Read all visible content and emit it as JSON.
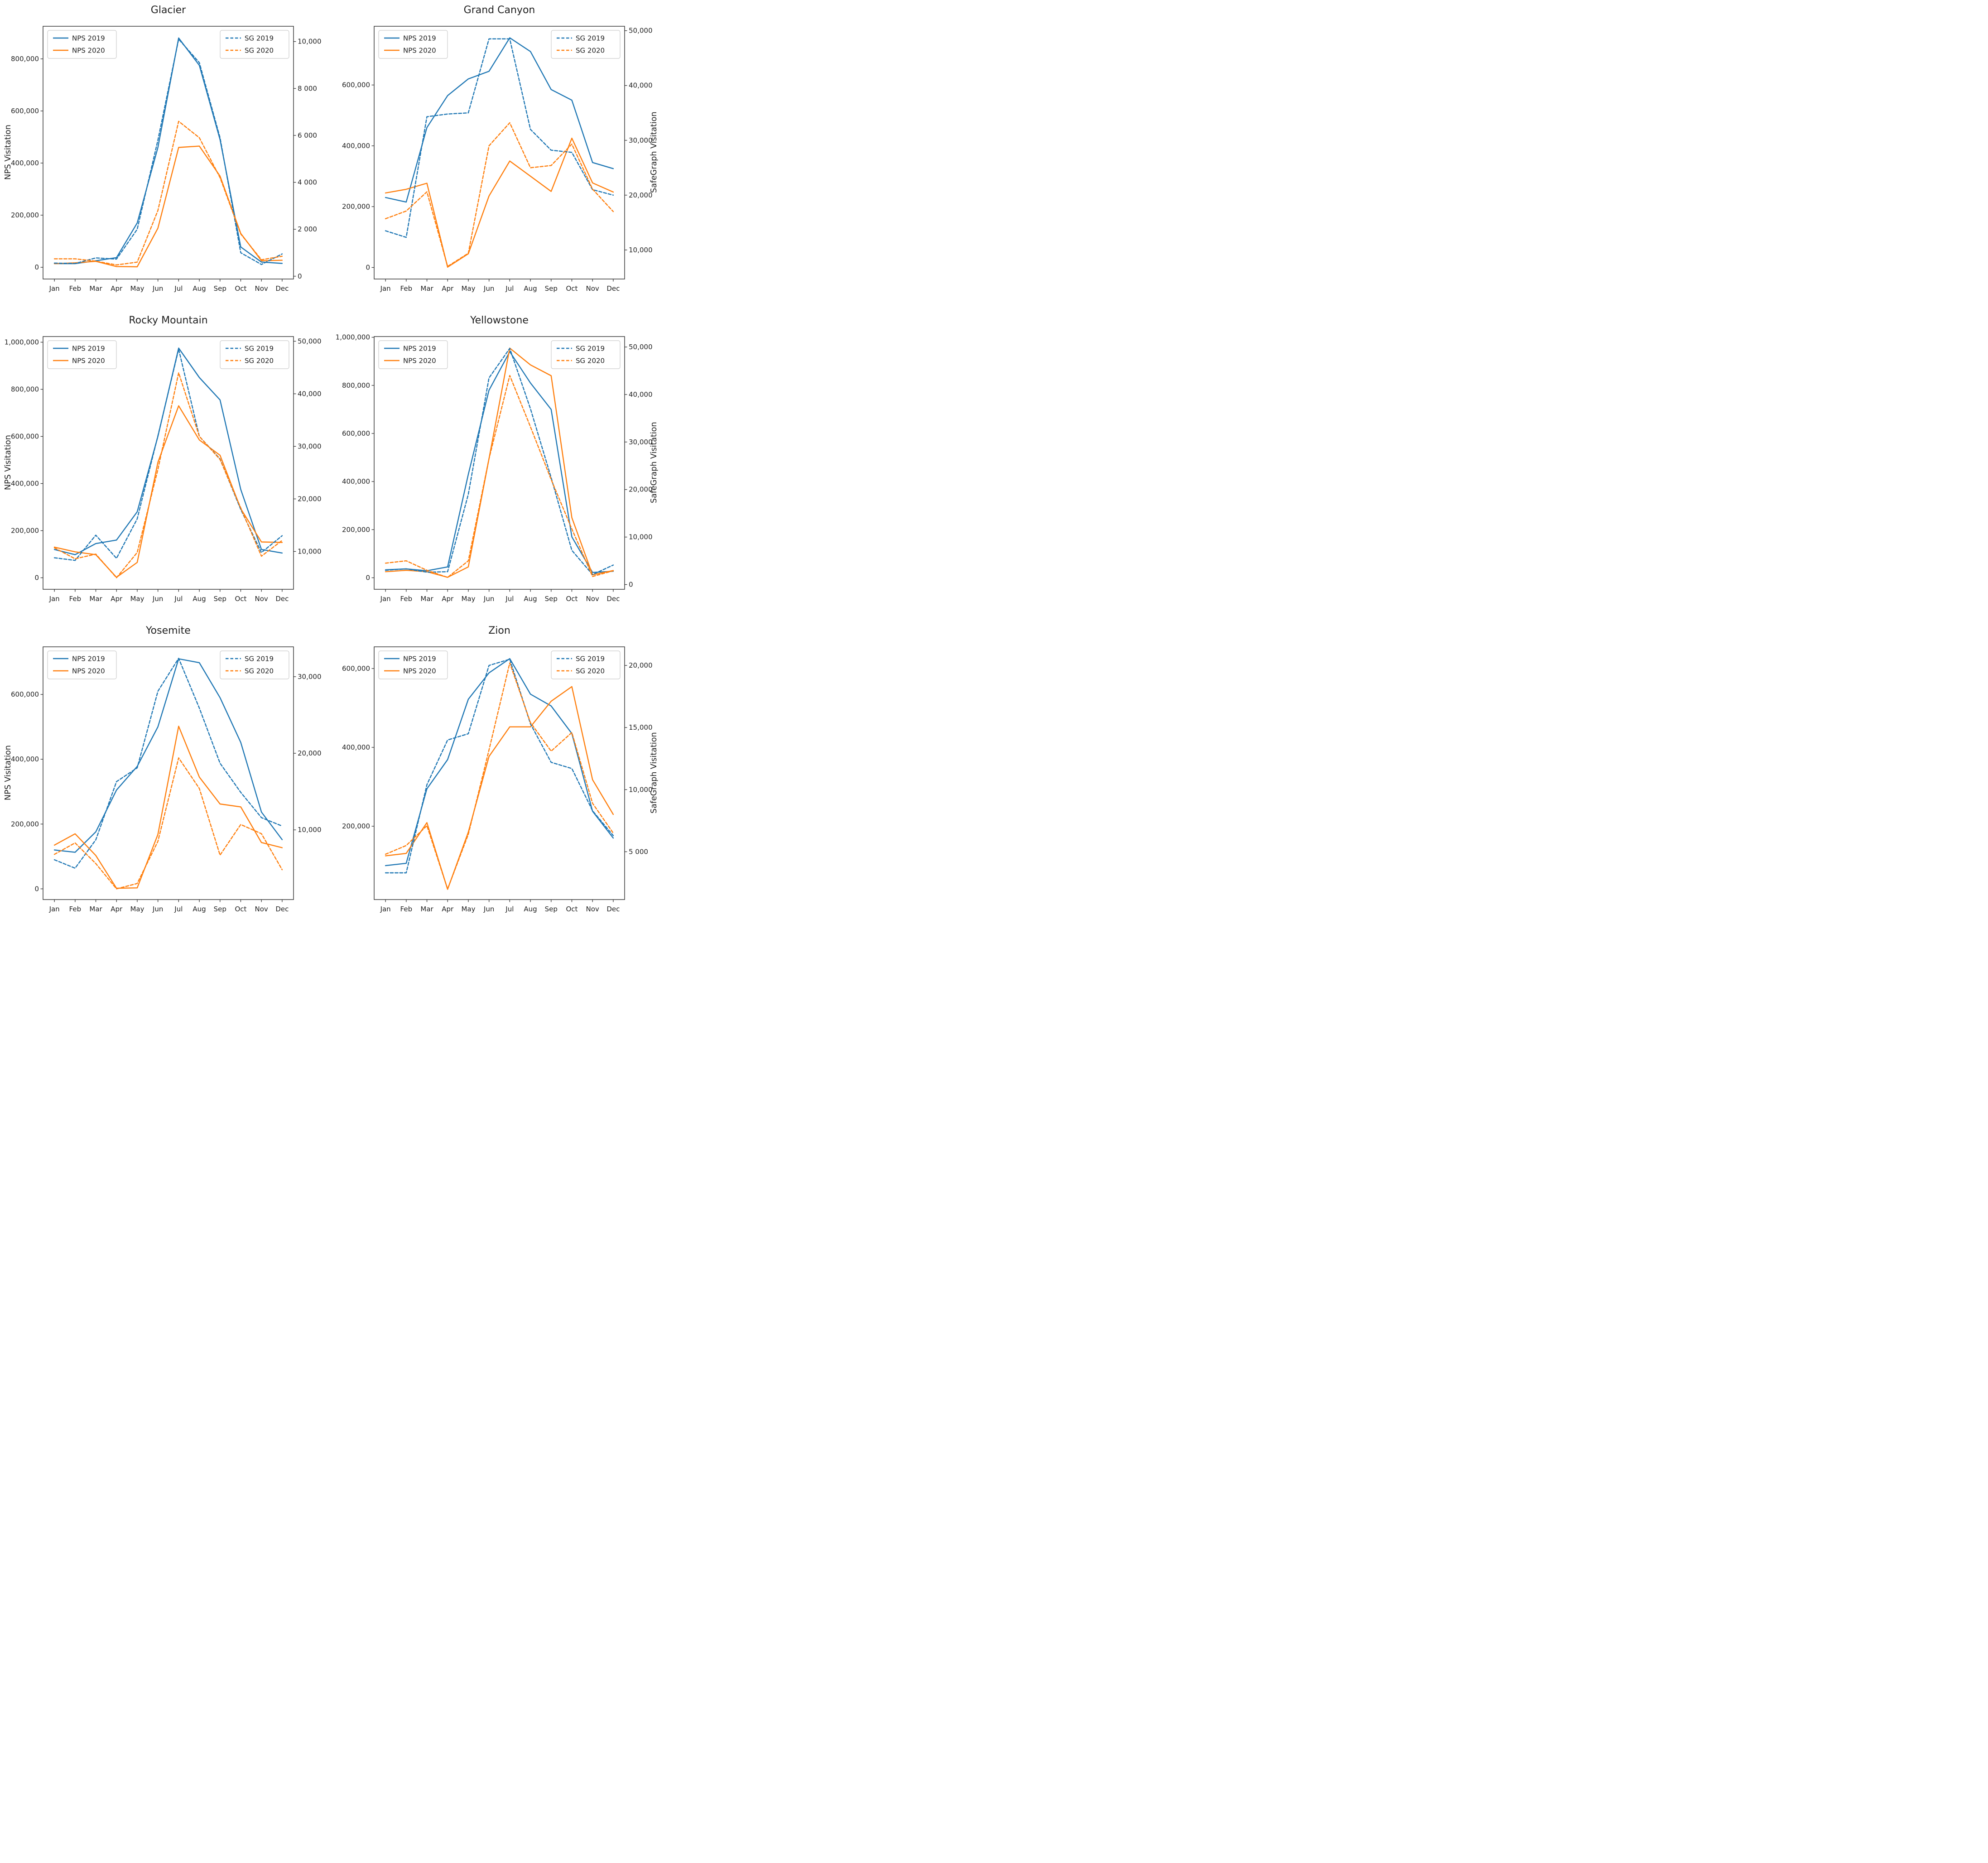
{
  "figure": {
    "colors": {
      "nps_blue": "#1f77b4",
      "nps_orange": "#ff7f0e",
      "text": "#1f1f1f",
      "spine": "#2e2e2e",
      "legend_border": "#cccccc",
      "legend_fill": "#ffffff"
    }
  },
  "chart_data": [
    {
      "type": "line",
      "title": "Glacier",
      "ylabel_left": "NPS Visitation",
      "categories": [
        "Jan",
        "Feb",
        "Mar",
        "Apr",
        "May",
        "Jun",
        "Jul",
        "Aug",
        "Sep",
        "Oct",
        "Nov",
        "Dec"
      ],
      "left_axis": {
        "lim": [
          -45000,
          925000
        ],
        "ticks": [
          {
            "v": 0,
            "label": "0"
          },
          {
            "v": 200000,
            "label": "200,000"
          },
          {
            "v": 400000,
            "label": "400,000"
          },
          {
            "v": 600000,
            "label": "600,000"
          },
          {
            "v": 800000,
            "label": "800,000"
          }
        ]
      },
      "right_axis": {
        "lim": [
          -120,
          10650
        ],
        "ticks": [
          {
            "v": 0,
            "label": "0"
          },
          {
            "v": 2000,
            "label": "2 000"
          },
          {
            "v": 4000,
            "label": "4 000"
          },
          {
            "v": 6000,
            "label": "6 000"
          },
          {
            "v": 8000,
            "label": "8 000"
          },
          {
            "v": 10000,
            "label": "10,000"
          }
        ]
      },
      "series": [
        {
          "name": "NPS 2019",
          "axis": "left",
          "style": "solid",
          "color": "#1f77b4",
          "values": [
            14000,
            14000,
            25000,
            37000,
            170000,
            460000,
            880000,
            775000,
            490000,
            78000,
            20000,
            15000
          ]
        },
        {
          "name": "NPS 2020",
          "axis": "left",
          "style": "solid",
          "color": "#ff7f0e",
          "values": [
            14000,
            17000,
            23000,
            3000,
            2000,
            150000,
            460000,
            465000,
            350000,
            130000,
            25000,
            27000
          ]
        },
        {
          "name": "SG 2019",
          "axis": "right",
          "style": "dashed",
          "color": "#1f77b4",
          "values": [
            560,
            540,
            780,
            730,
            2000,
            5800,
            10100,
            9100,
            5900,
            1000,
            500,
            950
          ]
        },
        {
          "name": "SG 2020",
          "axis": "right",
          "style": "dashed",
          "color": "#ff7f0e",
          "values": [
            740,
            740,
            640,
            480,
            600,
            2800,
            6600,
            5900,
            4200,
            1800,
            700,
            850
          ]
        }
      ]
    },
    {
      "type": "line",
      "title": "Grand Canyon",
      "ylabel_right": "SafeGraph Visitation",
      "categories": [
        "Jan",
        "Feb",
        "Mar",
        "Apr",
        "May",
        "Jun",
        "Jul",
        "Aug",
        "Sep",
        "Oct",
        "Nov",
        "Dec"
      ],
      "left_axis": {
        "lim": [
          -38000,
          793000
        ],
        "ticks": [
          {
            "v": 0,
            "label": "0"
          },
          {
            "v": 200000,
            "label": "200,000"
          },
          {
            "v": 400000,
            "label": "400,000"
          },
          {
            "v": 600000,
            "label": "600,000"
          }
        ]
      },
      "right_axis": {
        "lim": [
          4700,
          50800
        ],
        "ticks": [
          {
            "v": 10000,
            "label": "10,000"
          },
          {
            "v": 20000,
            "label": "20,000"
          },
          {
            "v": 30000,
            "label": "30,000"
          },
          {
            "v": 40000,
            "label": "40,000"
          },
          {
            "v": 50000,
            "label": "50,000"
          }
        ]
      },
      "series": [
        {
          "name": "NPS 2019",
          "axis": "left",
          "style": "solid",
          "color": "#1f77b4",
          "values": [
            230000,
            215000,
            460000,
            565000,
            620000,
            645000,
            755000,
            710000,
            585000,
            550000,
            345000,
            325000
          ]
        },
        {
          "name": "NPS 2020",
          "axis": "left",
          "style": "solid",
          "color": "#ff7f0e",
          "values": [
            245000,
            257000,
            277000,
            1000,
            45000,
            235000,
            350000,
            300000,
            250000,
            425000,
            278000,
            248000
          ]
        },
        {
          "name": "SG 2019",
          "axis": "right",
          "style": "dashed",
          "color": "#1f77b4",
          "values": [
            13500,
            12300,
            34300,
            34800,
            35000,
            48500,
            48500,
            32000,
            28200,
            27800,
            21000,
            20000
          ]
        },
        {
          "name": "SG 2020",
          "axis": "right",
          "style": "dashed",
          "color": "#ff7f0e",
          "values": [
            15700,
            17100,
            20600,
            7000,
            9400,
            29000,
            33200,
            25000,
            25400,
            29300,
            21100,
            17000
          ]
        }
      ]
    },
    {
      "type": "line",
      "title": "Rocky Mountain",
      "ylabel_left": "NPS Visitation",
      "categories": [
        "Jan",
        "Feb",
        "Mar",
        "Apr",
        "May",
        "Jun",
        "Jul",
        "Aug",
        "Sep",
        "Oct",
        "Nov",
        "Dec"
      ],
      "left_axis": {
        "lim": [
          -49000,
          1024000
        ],
        "ticks": [
          {
            "v": 0,
            "label": "0"
          },
          {
            "v": 200000,
            "label": "200,000"
          },
          {
            "v": 400000,
            "label": "400,000"
          },
          {
            "v": 600000,
            "label": "600,000"
          },
          {
            "v": 800000,
            "label": "800,000"
          },
          {
            "v": 1000000,
            "label": "1,000,000"
          }
        ]
      },
      "right_axis": {
        "lim": [
          2800,
          50900
        ],
        "ticks": [
          {
            "v": 10000,
            "label": "10,000"
          },
          {
            "v": 20000,
            "label": "20,000"
          },
          {
            "v": 30000,
            "label": "30,000"
          },
          {
            "v": 40000,
            "label": "40,000"
          },
          {
            "v": 50000,
            "label": "50,000"
          }
        ]
      },
      "series": [
        {
          "name": "NPS 2019",
          "axis": "left",
          "style": "solid",
          "color": "#1f77b4",
          "values": [
            120000,
            98000,
            145000,
            160000,
            280000,
            600000,
            975000,
            850000,
            755000,
            375000,
            120000,
            105000
          ]
        },
        {
          "name": "NPS 2020",
          "axis": "left",
          "style": "solid",
          "color": "#ff7f0e",
          "values": [
            130000,
            110000,
            98000,
            2000,
            65000,
            490000,
            730000,
            585000,
            520000,
            293000,
            152000,
            150000
          ]
        },
        {
          "name": "SG 2019",
          "axis": "right",
          "style": "dashed",
          "color": "#1f77b4",
          "values": [
            8800,
            8300,
            13100,
            8700,
            16200,
            32000,
            48500,
            31900,
            27600,
            18000,
            9800,
            13000
          ]
        },
        {
          "name": "SG 2020",
          "axis": "right",
          "style": "dashed",
          "color": "#ff7f0e",
          "values": [
            10700,
            8600,
            9500,
            5000,
            9800,
            25600,
            44000,
            31900,
            27500,
            18300,
            9100,
            12100
          ]
        }
      ]
    },
    {
      "type": "line",
      "title": "Yellowstone",
      "ylabel_right": "SafeGraph Visitation",
      "categories": [
        "Jan",
        "Feb",
        "Mar",
        "Apr",
        "May",
        "Jun",
        "Jul",
        "Aug",
        "Sep",
        "Oct",
        "Nov",
        "Dec"
      ],
      "left_axis": {
        "lim": [
          -48000,
          1003000
        ],
        "ticks": [
          {
            "v": 0,
            "label": "0"
          },
          {
            "v": 200000,
            "label": "200,000"
          },
          {
            "v": 400000,
            "label": "400,000"
          },
          {
            "v": 600000,
            "label": "600,000"
          },
          {
            "v": 800000,
            "label": "800,000"
          },
          {
            "v": 1000000,
            "label": "1,000,000"
          }
        ]
      },
      "right_axis": {
        "lim": [
          -1000,
          52200
        ],
        "ticks": [
          {
            "v": 0,
            "label": "0"
          },
          {
            "v": 10000,
            "label": "10,000"
          },
          {
            "v": 20000,
            "label": "20,000"
          },
          {
            "v": 30000,
            "label": "30,000"
          },
          {
            "v": 40000,
            "label": "40,000"
          },
          {
            "v": 50000,
            "label": "50,000"
          }
        ]
      },
      "series": [
        {
          "name": "NPS 2019",
          "axis": "left",
          "style": "solid",
          "color": "#1f77b4",
          "values": [
            33000,
            37000,
            29000,
            45000,
            430000,
            780000,
            940000,
            810000,
            700000,
            170000,
            22000,
            27000
          ]
        },
        {
          "name": "NPS 2020",
          "axis": "left",
          "style": "solid",
          "color": "#ff7f0e",
          "values": [
            25000,
            31000,
            25000,
            2000,
            45000,
            495000,
            955000,
            885000,
            840000,
            250000,
            12000,
            30000
          ]
        },
        {
          "name": "SG 2019",
          "axis": "right",
          "style": "dashed",
          "color": "#1f77b4",
          "values": [
            3000,
            3300,
            2600,
            2700,
            19000,
            43500,
            49700,
            37000,
            22500,
            7200,
            2100,
            4100
          ]
        },
        {
          "name": "SG 2020",
          "axis": "right",
          "style": "dashed",
          "color": "#ff7f0e",
          "values": [
            4500,
            5000,
            3000,
            1500,
            5000,
            26500,
            44000,
            33200,
            22100,
            11700,
            1700,
            2900
          ]
        }
      ]
    },
    {
      "type": "line",
      "title": "Yosemite",
      "ylabel_left": "NPS Visitation",
      "categories": [
        "Jan",
        "Feb",
        "Mar",
        "Apr",
        "May",
        "Jun",
        "Jul",
        "Aug",
        "Sep",
        "Oct",
        "Nov",
        "Dec"
      ],
      "left_axis": {
        "lim": [
          -33000,
          747000
        ],
        "ticks": [
          {
            "v": 0,
            "label": "0"
          },
          {
            "v": 200000,
            "label": "200,000"
          },
          {
            "v": 400000,
            "label": "400,000"
          },
          {
            "v": 600000,
            "label": "600,000"
          }
        ]
      },
      "right_axis": {
        "lim": [
          900,
          33900
        ],
        "ticks": [
          {
            "v": 10000,
            "label": "10,000"
          },
          {
            "v": 20000,
            "label": "20,000"
          },
          {
            "v": 30000,
            "label": "30,000"
          }
        ]
      },
      "series": [
        {
          "name": "NPS 2019",
          "axis": "left",
          "style": "solid",
          "color": "#1f77b4",
          "values": [
            120000,
            113000,
            176000,
            305000,
            378000,
            500000,
            710000,
            698000,
            590000,
            452000,
            237000,
            152000
          ]
        },
        {
          "name": "NPS 2020",
          "axis": "left",
          "style": "solid",
          "color": "#ff7f0e",
          "values": [
            135000,
            170000,
            103000,
            2000,
            3000,
            168000,
            502000,
            345000,
            262000,
            253000,
            143000,
            127000
          ]
        },
        {
          "name": "SG 2019",
          "axis": "right",
          "style": "dashed",
          "color": "#1f77b4",
          "values": [
            6100,
            5000,
            8700,
            16300,
            18100,
            28100,
            32400,
            25900,
            18700,
            14900,
            11600,
            10500
          ]
        },
        {
          "name": "SG 2020",
          "axis": "right",
          "style": "dashed",
          "color": "#ff7f0e",
          "values": [
            6800,
            8300,
            5600,
            2300,
            3000,
            8500,
            19400,
            15400,
            6700,
            10700,
            9500,
            4800
          ]
        }
      ]
    },
    {
      "type": "line",
      "title": "Zion",
      "ylabel_right": "SafeGraph Visitation",
      "categories": [
        "Jan",
        "Feb",
        "Mar",
        "Apr",
        "May",
        "Jun",
        "Jul",
        "Aug",
        "Sep",
        "Oct",
        "Nov",
        "Dec"
      ],
      "left_axis": {
        "lim": [
          14000,
          655000
        ],
        "ticks": [
          {
            "v": 200000,
            "label": "200,000"
          },
          {
            "v": 400000,
            "label": "400,000"
          },
          {
            "v": 600000,
            "label": "600,000"
          }
        ]
      },
      "right_axis": {
        "lim": [
          1150,
          21500
        ],
        "ticks": [
          {
            "v": 5000,
            "label": "5 000"
          },
          {
            "v": 10000,
            "label": "10,000"
          },
          {
            "v": 15000,
            "label": "15,000"
          },
          {
            "v": 20000,
            "label": "20,000"
          }
        ]
      },
      "series": [
        {
          "name": "NPS 2019",
          "axis": "left",
          "style": "solid",
          "color": "#1f77b4",
          "values": [
            100000,
            106000,
            295000,
            369000,
            522000,
            589000,
            625000,
            535000,
            505000,
            435000,
            238000,
            170000
          ]
        },
        {
          "name": "NPS 2020",
          "axis": "left",
          "style": "solid",
          "color": "#ff7f0e",
          "values": [
            125000,
            131000,
            209000,
            40000,
            185000,
            377000,
            452000,
            452000,
            517000,
            554000,
            318000,
            230000
          ]
        },
        {
          "name": "SG 2019",
          "axis": "right",
          "style": "dashed",
          "color": "#1f77b4",
          "values": [
            3300,
            3300,
            10400,
            14000,
            14500,
            20000,
            20500,
            15300,
            12200,
            11700,
            8300,
            6300
          ]
        },
        {
          "name": "SG 2020",
          "axis": "right",
          "style": "dashed",
          "color": "#ff7f0e",
          "values": [
            4800,
            5500,
            7100,
            2000,
            6400,
            13200,
            20200,
            15400,
            13100,
            14600,
            8900,
            6500
          ]
        }
      ]
    }
  ]
}
